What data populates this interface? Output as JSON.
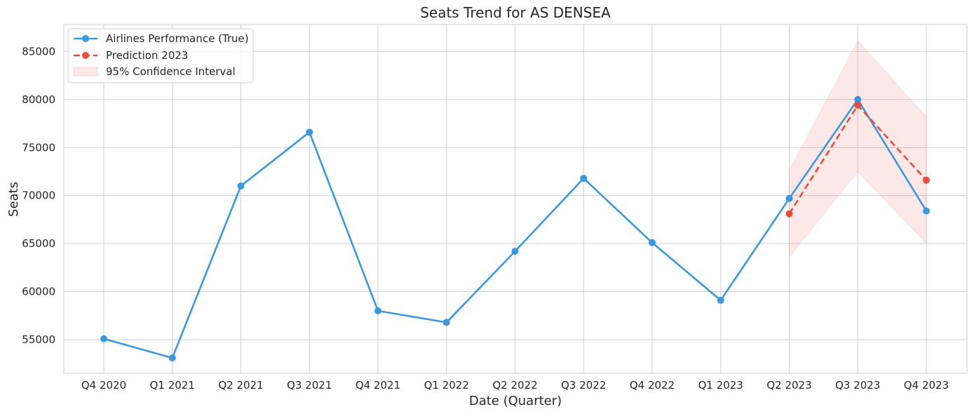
{
  "chart_data": {
    "type": "line",
    "title": "Seats Trend for AS DENSEA",
    "xlabel": "Date (Quarter)",
    "ylabel": "Seats",
    "categories": [
      "Q4 2020",
      "Q1 2021",
      "Q2 2021",
      "Q3 2021",
      "Q4 2021",
      "Q1 2022",
      "Q2 2022",
      "Q3 2022",
      "Q4 2022",
      "Q1 2023",
      "Q2 2023",
      "Q3 2023",
      "Q4 2023"
    ],
    "ylim": [
      51500,
      87800
    ],
    "yticks": [
      55000,
      60000,
      65000,
      70000,
      75000,
      80000,
      85000
    ],
    "grid": true,
    "legend_position": "top-left",
    "series": [
      {
        "name": "Airlines Performance (True)",
        "color": "#3a98db",
        "style": "solid",
        "values": [
          55100,
          53100,
          71000,
          76600,
          58000,
          56800,
          64200,
          71800,
          65100,
          59100,
          69700,
          80000,
          68400
        ]
      },
      {
        "name": "Prediction 2023",
        "color": "#e74c3c",
        "style": "dashed",
        "values": [
          null,
          null,
          null,
          null,
          null,
          null,
          null,
          null,
          null,
          null,
          68100,
          79400,
          71600
        ]
      }
    ],
    "confidence_interval": {
      "name": "95% Confidence Interval",
      "color": "#e74c3c",
      "categories": [
        "Q2 2023",
        "Q3 2023",
        "Q4 2023"
      ],
      "lower": [
        63600,
        72500,
        65000
      ],
      "upper": [
        72600,
        86100,
        78200
      ]
    }
  }
}
